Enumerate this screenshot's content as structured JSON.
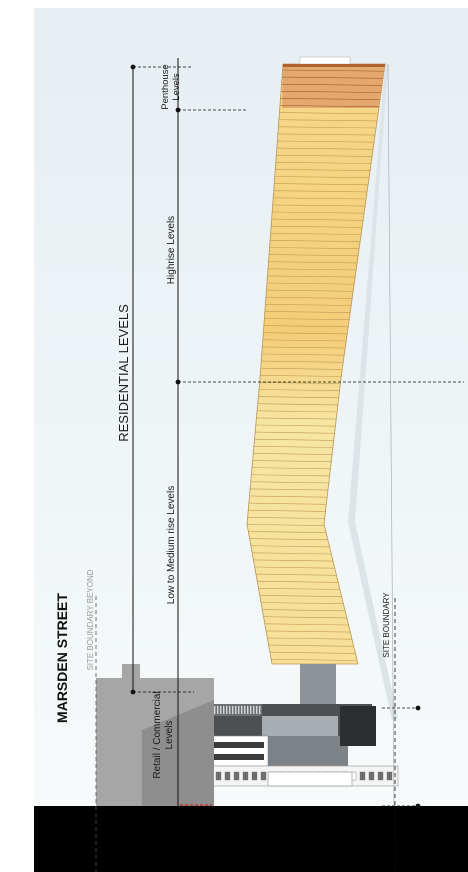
{
  "street_name": "MARSDEN STREET",
  "labels": {
    "site_boundary_beyond": "SITE BOUNDARY BEYOND",
    "site_boundary": "SITE BOUNDARY",
    "residential_levels": "RESIDENTIAL LEVELS",
    "penthouse_line1": "Penthouse",
    "penthouse_line2": "Levels",
    "highrise_levels": "Highrise Levels",
    "low_medium_levels": "Low to Medium rise Levels",
    "retail_line1": "Retail / Commercial",
    "retail_line2": "Levels"
  },
  "colors": {
    "sky_top": "#e8f0f3",
    "sky_bottom": "#f7fafb",
    "penthouse": "#e2a36c",
    "highrise": "#f4cf7c",
    "lowrise": "#f6e8a8",
    "ground": "#000000"
  }
}
